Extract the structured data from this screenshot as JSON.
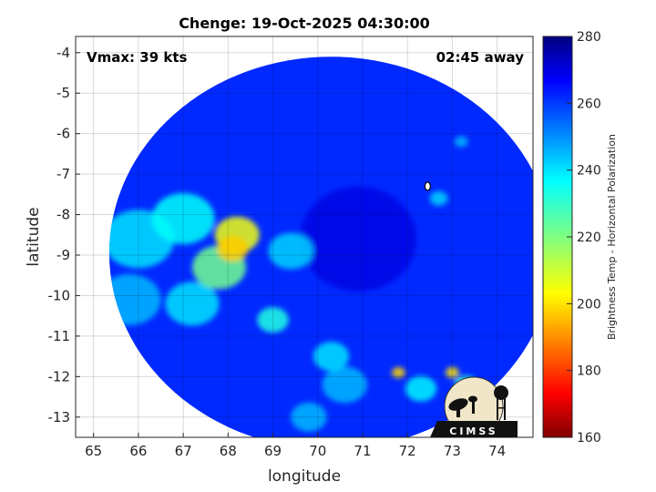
{
  "title": "Chenge: 19-Oct-2025 04:30:00",
  "vmax_text": "Vmax: 39 kts",
  "away_text": "02:45 away",
  "xlabel": "longitude",
  "ylabel": "latitude",
  "colorbar": {
    "label": "Brightness Temp - Horizontal Polarization",
    "range": [
      160,
      280
    ],
    "ticks": [
      "160",
      "180",
      "200",
      "220",
      "240",
      "260",
      "280"
    ],
    "colormap": "jet"
  },
  "logo": {
    "text": "CIMSS"
  },
  "chart_data": {
    "type": "heatmap",
    "title": "Chenge: 19-Oct-2025 04:30:00",
    "xlabel": "longitude",
    "ylabel": "latitude",
    "xlim": [
      64.6,
      74.8
    ],
    "ylim": [
      -13.5,
      -3.6
    ],
    "xticks": [
      "65",
      "66",
      "67",
      "68",
      "69",
      "70",
      "71",
      "72",
      "73",
      "74"
    ],
    "yticks": [
      "-4",
      "-5",
      "-6",
      "-7",
      "-8",
      "-9",
      "-10",
      "-11",
      "-12",
      "-13"
    ],
    "grid": true,
    "swath": {
      "center": [
        70.3,
        -8.95
      ],
      "radius_lon": 4.95,
      "radius_lat": 4.85
    },
    "background_value": 262,
    "features": [
      {
        "lon": 68.1,
        "lat": -8.85,
        "value": 197,
        "spread": 0.35
      },
      {
        "lon": 68.2,
        "lat": -8.5,
        "value": 205,
        "spread": 0.5
      },
      {
        "lon": 67.8,
        "lat": -9.3,
        "value": 222,
        "spread": 0.6
      },
      {
        "lon": 67.0,
        "lat": -8.1,
        "value": 236,
        "spread": 0.7
      },
      {
        "lon": 66.0,
        "lat": -8.6,
        "value": 240,
        "spread": 0.8
      },
      {
        "lon": 65.8,
        "lat": -10.1,
        "value": 245,
        "spread": 0.7
      },
      {
        "lon": 67.2,
        "lat": -10.2,
        "value": 240,
        "spread": 0.6
      },
      {
        "lon": 69.0,
        "lat": -10.6,
        "value": 233,
        "spread": 0.35
      },
      {
        "lon": 69.4,
        "lat": -8.9,
        "value": 242,
        "spread": 0.5
      },
      {
        "lon": 70.3,
        "lat": -11.5,
        "value": 240,
        "spread": 0.4
      },
      {
        "lon": 70.6,
        "lat": -12.2,
        "value": 245,
        "spread": 0.5
      },
      {
        "lon": 71.8,
        "lat": -11.9,
        "value": 198,
        "spread": 0.15
      },
      {
        "lon": 72.3,
        "lat": -12.3,
        "value": 238,
        "spread": 0.35
      },
      {
        "lon": 73.0,
        "lat": -11.9,
        "value": 200,
        "spread": 0.15
      },
      {
        "lon": 73.3,
        "lat": -12.2,
        "value": 232,
        "spread": 0.25
      },
      {
        "lon": 72.7,
        "lat": -7.6,
        "value": 242,
        "spread": 0.2
      },
      {
        "lon": 73.2,
        "lat": -6.2,
        "value": 245,
        "spread": 0.15
      },
      {
        "lon": 69.8,
        "lat": -13.0,
        "value": 245,
        "spread": 0.4
      }
    ],
    "cold_core": {
      "lon": 70.9,
      "lat": -8.6,
      "value": 270,
      "spread": 1.3
    },
    "island_marker": {
      "lon": 72.45,
      "lat": -7.3
    }
  }
}
